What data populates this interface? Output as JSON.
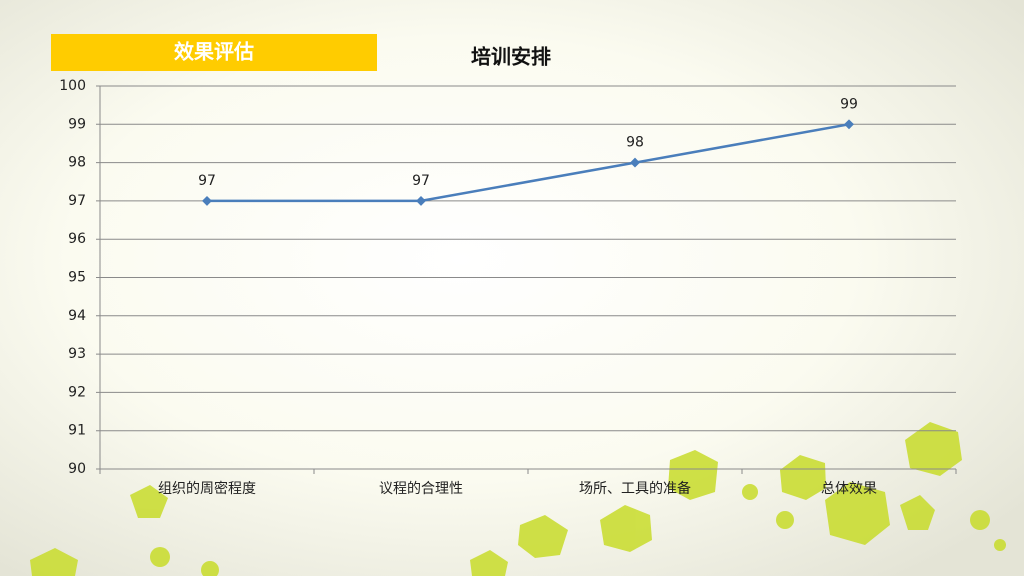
{
  "header": {
    "label": "效果评估"
  },
  "chart_data": {
    "type": "line",
    "title": "培训安排",
    "categories": [
      "组织的周密程度",
      "议程的合理性",
      "场所、工具的准备",
      "总体效果"
    ],
    "values": [
      97,
      97,
      98,
      99
    ],
    "color": "#4a7ebb",
    "ylim": [
      90,
      100
    ],
    "yticks": [
      90,
      91,
      92,
      93,
      94,
      95,
      96,
      97,
      98,
      99,
      100
    ],
    "grid": true
  }
}
